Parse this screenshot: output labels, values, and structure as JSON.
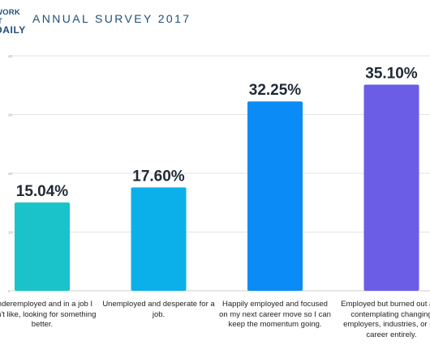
{
  "header": {
    "logo_line1": "WORK IT",
    "logo_line2": "DAILY",
    "title": "ANNUAL SURVEY 2017"
  },
  "chart_data": {
    "type": "bar",
    "title": "ANNUAL SURVEY 2017",
    "categories": [
      "Underemployed and in a job I don't like, looking for something better.",
      "Unemployed and desperate for a job.",
      "Happily employed and focused on my next career move so I can keep the momentum going.",
      "Employed but burned out and contemplating changing employers, industries, or my career entirely."
    ],
    "values": [
      15.04,
      17.6,
      32.25,
      35.1
    ],
    "value_labels": [
      "15.04%",
      "17.60%",
      "32.25%",
      "35.10%"
    ],
    "yticks": [
      "0",
      "10",
      "20",
      "30",
      "40"
    ],
    "ylim": [
      0,
      40
    ],
    "grid": true,
    "colors": [
      "#19c3c9",
      "#0bb0ea",
      "#0a8bf5",
      "#6b5de6"
    ]
  }
}
